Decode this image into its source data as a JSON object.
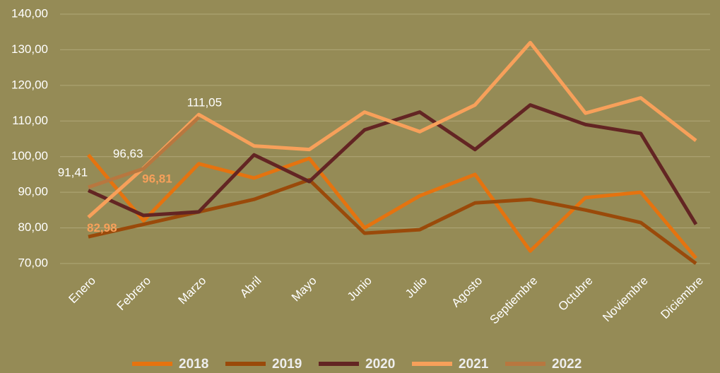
{
  "chart_data": {
    "type": "line",
    "categories": [
      "Enero",
      "Febrero",
      "Marzo",
      "Abril",
      "Mayo",
      "Junio",
      "Julio",
      "Agosto",
      "Septiembre",
      "Octubre",
      "Noviembre",
      "Diciembre"
    ],
    "series": [
      {
        "name": "2018",
        "color": "#e5730f",
        "values": [
          100.5,
          82,
          98,
          94,
          99.5,
          80,
          89,
          95,
          73.5,
          88.5,
          90,
          71.5
        ]
      },
      {
        "name": "2019",
        "color": "#9a4a0a",
        "values": [
          77.5,
          81,
          84.5,
          88,
          93.5,
          78.5,
          79.5,
          87,
          88,
          85,
          81.5,
          70
        ]
      },
      {
        "name": "2020",
        "color": "#632523",
        "values": [
          90.5,
          83.5,
          84.5,
          100.5,
          93,
          107.5,
          112.5,
          102,
          114.5,
          109,
          106.5,
          81
        ]
      },
      {
        "name": "2021",
        "color": "#f7a05a",
        "values": [
          82.98,
          96.81,
          111.8,
          103,
          102,
          112.5,
          107,
          114.5,
          132,
          112.2,
          116.5,
          104.5
        ],
        "value_labels": [
          "82,98",
          "96,81",
          null,
          null,
          null,
          null,
          null,
          null,
          null,
          null,
          null,
          null
        ]
      },
      {
        "name": "2022",
        "color": "#b8773f",
        "values": [
          91.41,
          96.63,
          111.05,
          null,
          null,
          null,
          null,
          null,
          null,
          null,
          null,
          null
        ],
        "value_labels": [
          "91,41",
          "96,63",
          "111,05",
          null,
          null,
          null,
          null,
          null,
          null,
          null,
          null,
          null
        ]
      }
    ],
    "ylim": [
      70,
      140
    ],
    "yticks": [
      {
        "value": 70,
        "label": "70,00"
      },
      {
        "value": 80,
        "label": "80,00"
      },
      {
        "value": 90,
        "label": "90,00"
      },
      {
        "value": 100,
        "label": "100,00"
      },
      {
        "value": 110,
        "label": "110,00"
      },
      {
        "value": 120,
        "label": "120,00"
      },
      {
        "value": 130,
        "label": "130,00"
      },
      {
        "value": 140,
        "label": "140,00"
      }
    ],
    "grid": true,
    "legend": "bottom"
  }
}
